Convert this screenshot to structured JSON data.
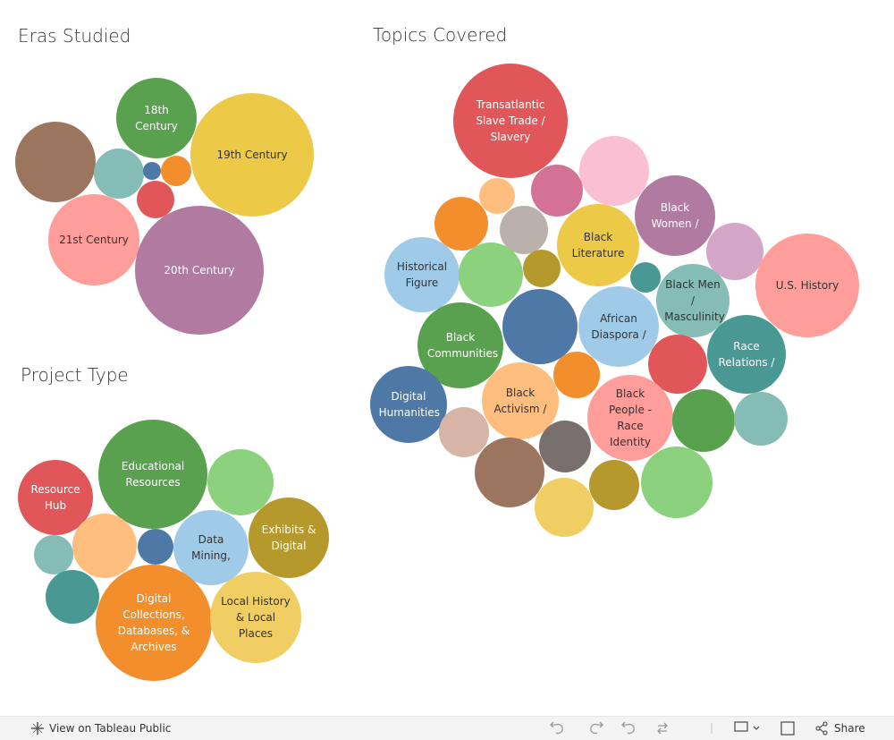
{
  "chart_data": [
    {
      "type": "bubble",
      "title": "Eras Studied",
      "categories": [
        "18th Century",
        "19th Century",
        null,
        null,
        null,
        null,
        null,
        "21st Century",
        "20th Century"
      ],
      "values": [
        203,
        476,
        203,
        78,
        10,
        29,
        44,
        260,
        518
      ],
      "colors": [
        "#59a14f",
        "#edc948",
        "#9c755f",
        "#86bcb6",
        "#4e79a7",
        "#f28e2b",
        "#e15759",
        "#ff9d9a",
        "#b07aa1"
      ]
    },
    {
      "type": "bubble",
      "title": "Project Type",
      "categories": [
        "Resource Hub",
        "Educational Resources",
        null,
        "Exhibits & Digital",
        "Data Mining,",
        null,
        null,
        null,
        null,
        "Digital Collections, Databases, & Archives",
        "Local History & Local Places"
      ],
      "values": [
        176,
        372,
        137,
        203,
        176,
        40,
        130,
        48,
        90,
        423,
        260
      ],
      "colors": [
        "#e15759",
        "#59a14f",
        "#8cd17d",
        "#b6992d",
        "#a0cbe8",
        "#4e79a7",
        "#ffbe7d",
        "#86bcb6",
        "#499894",
        "#f28e2b",
        "#f1ce63"
      ]
    },
    {
      "type": "bubble",
      "title": "Topics Covered",
      "categories": [
        "Transatlantic Slave Trade / Slavery",
        null,
        null,
        null,
        "Black Women /",
        null,
        null,
        "Black Literature",
        null,
        null,
        "Historical Figure",
        null,
        null,
        "U.S. History",
        "Black Men / Masculinity",
        null,
        "African Diaspora /",
        "Black Communities",
        "Race Relations /",
        null,
        null,
        "Digital Humanities",
        "Black Activism /",
        "Black People - Race Identity",
        null,
        null,
        null,
        null,
        null,
        null,
        null,
        null
      ],
      "values": [
        410,
        152,
        84,
        40,
        203,
        90,
        73,
        212,
        102,
        44,
        176,
        130,
        29,
        336,
        168,
        176,
        203,
        230,
        194,
        109,
        68,
        185,
        185,
        230,
        123,
        90,
        78,
        84,
        152,
        78,
        160,
        109
      ],
      "colors": [
        "#e15759",
        "#fabfd2",
        "#d37295",
        "#ffbe7d",
        "#b07aa1",
        "#f28e2b",
        "#bab0ac",
        "#edc948",
        "#d4a6c8",
        "#b6992d",
        "#a0cbe8",
        "#8cd17d",
        "#499894",
        "#ff9d9a",
        "#86bcb6",
        "#4e79a7",
        "#a0cbe8",
        "#59a14f",
        "#499894",
        "#e15759",
        "#f28e2b",
        "#4e79a7",
        "#ffbe7d",
        "#ff9d9a",
        "#59a14f",
        "#86bcb6",
        "#d7b5a6",
        "#79706e",
        "#9c755f",
        "#b6992d",
        "#8cd17d",
        "#f1ce63"
      ]
    }
  ],
  "toolbar": {
    "view_link": "View on Tableau Public",
    "share": "Share"
  }
}
